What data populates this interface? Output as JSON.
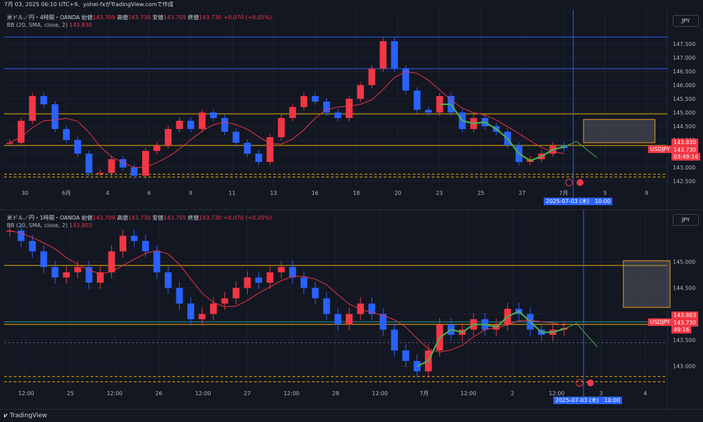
{
  "caption": "7月 03, 2025 06:10 UTC+9、yohei-fxがTradingView.comで作成",
  "colors": {
    "bg": "#131722",
    "grid": "#1e2230",
    "up": "#f23645",
    "down": "#2962ff",
    "bb": "#f23645",
    "yellow": "#f0b400",
    "blue_line": "#2962ff",
    "green_line": "#4caf50",
    "orange_box": "#f0a020"
  },
  "footer_logo": "TradingView",
  "panels": [
    {
      "legend": {
        "symbol": "米ドル／円・4時間・OANDA",
        "o_label": "始値",
        "o": "143.709",
        "h_label": "高値",
        "h": "143.730",
        "l_label": "安値",
        "l": "143.705",
        "c_label": "終値",
        "c": "143.730",
        "chg": "+0.070 (+0.05%)",
        "bb_label": "BB (20, SMA, close, 2)",
        "bb_value": "143.830"
      },
      "currency": "JPY",
      "price_labels": [
        "147.500",
        "147.000",
        "146.500",
        "146.000",
        "145.500",
        "145.000",
        "144.500",
        "144.000",
        "143.500",
        "143.000",
        "142.500"
      ],
      "price_range": [
        142.3,
        148.0
      ],
      "badges": {
        "bb": "143.830",
        "sym": "USDJPY",
        "price": "143.730",
        "timer": "03:49:16"
      },
      "x_labels": [
        "30",
        "6月",
        "4",
        "6",
        "9",
        "11",
        "13",
        "16",
        "18",
        "20",
        "23",
        "25",
        "27",
        "7月",
        "5",
        "9"
      ],
      "crosshair_date": "2025-07-03 (木)　10:00",
      "series_shape": [
        143.9,
        144.7,
        145.6,
        145.3,
        144.4,
        144.0,
        143.5,
        142.8,
        142.8,
        143.3,
        143.0,
        142.7,
        143.6,
        143.8,
        144.4,
        144.7,
        144.4,
        145.0,
        144.8,
        144.3,
        143.9,
        143.5,
        143.2,
        144.1,
        144.8,
        145.2,
        145.6,
        145.4,
        145.0,
        144.8,
        145.5,
        146.0,
        146.6,
        147.6,
        146.6,
        145.8,
        145.1,
        145.0,
        145.6,
        145.0,
        144.4,
        144.8,
        144.5,
        144.3,
        143.8,
        143.2,
        143.3,
        143.5,
        143.8,
        143.7
      ],
      "lines": {
        "blue": [
          147.75,
          146.6
        ],
        "yellow": [
          144.95,
          143.8
        ],
        "orange_dashed": [
          142.75,
          142.65
        ]
      }
    },
    {
      "legend": {
        "symbol": "米ドル／円・1時間・OANDA",
        "o_label": "始値",
        "o": "143.709",
        "h_label": "高値",
        "h": "143.730",
        "l_label": "安値",
        "l": "143.705",
        "c_label": "終値",
        "c": "143.730",
        "chg": "+0.070 (+0.05%)",
        "bb_label": "BB (20, SMA, close, 2)",
        "bb_value": "143.803"
      },
      "currency": "JPY",
      "price_labels": [
        "145.000",
        "144.500",
        "144.000",
        "143.500",
        "143.000"
      ],
      "price_range": [
        142.6,
        145.6
      ],
      "badges": {
        "bb": "143.803",
        "sym": "USDJPY",
        "price": "143.730",
        "timer": "49:16"
      },
      "x_labels": [
        "12:00",
        "25",
        "12:00",
        "26",
        "12:00",
        "27",
        "12:00",
        "28",
        "12:00",
        "7月",
        "12:00",
        "2",
        "12:00",
        "3",
        "4"
      ],
      "crosshair_date": "2025-07-03 (木)　10:00",
      "series_shape": [
        145.6,
        145.4,
        145.2,
        144.9,
        144.7,
        144.8,
        144.9,
        144.6,
        144.8,
        145.2,
        145.5,
        145.4,
        145.2,
        144.8,
        144.5,
        144.2,
        143.9,
        144.0,
        144.2,
        144.3,
        144.5,
        144.7,
        144.6,
        144.8,
        144.9,
        144.7,
        144.5,
        144.3,
        144.0,
        143.8,
        144.0,
        144.2,
        144.0,
        143.7,
        143.3,
        143.1,
        142.9,
        143.3,
        143.8,
        143.6,
        143.7,
        143.9,
        143.7,
        143.8,
        144.1,
        144.0,
        143.7,
        143.6,
        143.7,
        143.73
      ],
      "lines": {
        "yellow": [
          144.93,
          143.8
        ],
        "teal": [
          143.85
        ],
        "orange_dashed": [
          142.8,
          142.7
        ],
        "dashed_grey": [
          143.45
        ]
      }
    }
  ]
}
